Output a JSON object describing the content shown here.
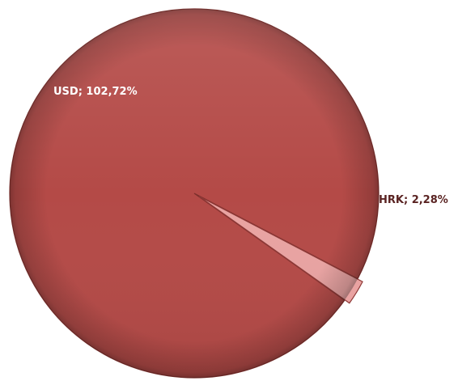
{
  "chart_data": {
    "type": "pie",
    "title": "",
    "slices": [
      {
        "label": "USD",
        "value": 102.72,
        "display": "USD; 102,72%",
        "color": "#b44a47"
      },
      {
        "label": "HRK",
        "value": 2.28,
        "display": "HRK; 2,28%",
        "color": "#e9a3a2"
      }
    ],
    "legend": "none"
  }
}
